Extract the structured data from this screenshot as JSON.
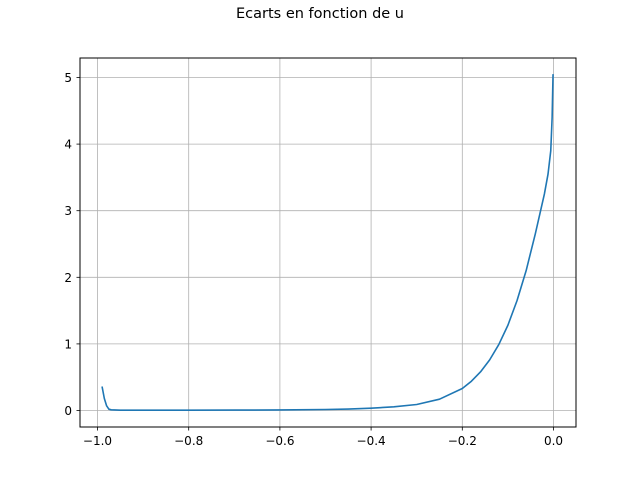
{
  "chart_data": {
    "type": "line",
    "title": "Ecarts en fonction de u",
    "xlabel": "",
    "ylabel": "",
    "xlim": [
      -1.0,
      0.0
    ],
    "ylim": [
      -0.25,
      5.25
    ],
    "grid": true,
    "xticks": [
      -1.0,
      -0.8,
      -0.6,
      -0.4,
      -0.2,
      0.0
    ],
    "xtick_labels": [
      "−1.0",
      "−0.8",
      "−0.6",
      "−0.4",
      "−0.2",
      "0.0"
    ],
    "yticks": [
      0,
      1,
      2,
      3,
      4,
      5
    ],
    "ytick_labels": [
      "0",
      "1",
      "2",
      "3",
      "4",
      "5"
    ],
    "series": [
      {
        "color": "#1f77b4",
        "x": [
          -0.99,
          -0.985,
          -0.98,
          -0.975,
          -0.97,
          -0.95,
          -0.9,
          -0.8,
          -0.7,
          -0.6,
          -0.5,
          -0.45,
          -0.4,
          -0.35,
          -0.3,
          -0.25,
          -0.2,
          -0.18,
          -0.16,
          -0.14,
          -0.12,
          -0.1,
          -0.08,
          -0.06,
          -0.04,
          -0.02,
          -0.012,
          -0.006,
          -0.003,
          -0.001
        ],
        "y": [
          0.36,
          0.18,
          0.07,
          0.02,
          0.01,
          0.005,
          0.005,
          0.005,
          0.006,
          0.008,
          0.015,
          0.022,
          0.035,
          0.055,
          0.09,
          0.17,
          0.33,
          0.44,
          0.58,
          0.76,
          0.99,
          1.28,
          1.65,
          2.1,
          2.65,
          3.25,
          3.55,
          3.9,
          4.4,
          5.05
        ]
      }
    ]
  }
}
